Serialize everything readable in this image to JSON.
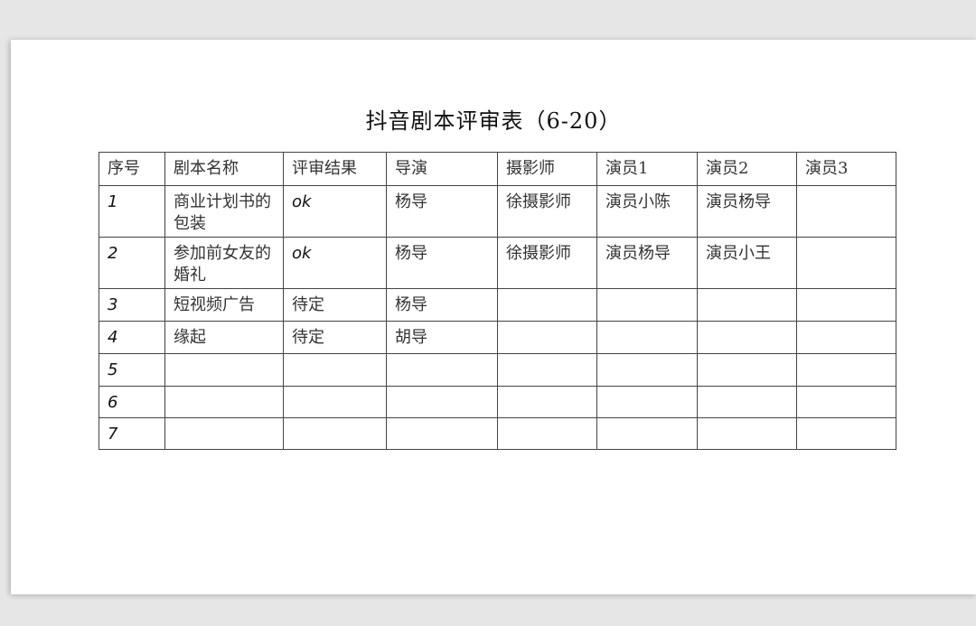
{
  "document": {
    "title": "抖音剧本评审表（6-20）",
    "table": {
      "headers": [
        "序号",
        "剧本名称",
        "评审结果",
        "导演",
        "摄影师",
        "演员1",
        "演员2",
        "演员3"
      ],
      "rows": [
        [
          "1",
          "商业计划书的包装",
          "ok",
          "杨导",
          "徐摄影师",
          "演员小陈",
          "演员杨导",
          ""
        ],
        [
          "2",
          "参加前女友的婚礼",
          "ok",
          "杨导",
          "徐摄影师",
          "演员杨导",
          "演员小王",
          ""
        ],
        [
          "3",
          "短视频广告",
          "待定",
          "杨导",
          "",
          "",
          "",
          ""
        ],
        [
          "4",
          "缘起",
          "待定",
          "胡导",
          "",
          "",
          "",
          ""
        ],
        [
          "5",
          "",
          "",
          "",
          "",
          "",
          "",
          ""
        ],
        [
          "6",
          "",
          "",
          "",
          "",
          "",
          "",
          ""
        ],
        [
          "7",
          "",
          "",
          "",
          "",
          "",
          "",
          ""
        ]
      ]
    }
  }
}
